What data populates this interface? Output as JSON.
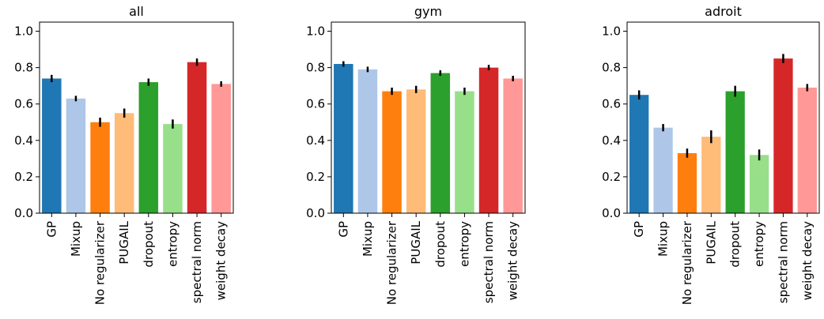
{
  "chart_data": [
    {
      "type": "bar",
      "title": "all",
      "categories": [
        "GP",
        "Mixup",
        "No regularizer",
        "PUGAIL",
        "dropout",
        "entropy",
        "spectral norm",
        "weight decay"
      ],
      "values": [
        0.74,
        0.63,
        0.5,
        0.55,
        0.72,
        0.49,
        0.83,
        0.71
      ],
      "errors": [
        0.02,
        0.015,
        0.025,
        0.025,
        0.02,
        0.025,
        0.02,
        0.015
      ],
      "ylim": [
        0.0,
        1.05
      ],
      "yticks": [
        "0.0",
        "0.2",
        "0.4",
        "0.6",
        "0.8",
        "1.0"
      ],
      "xlabel": "",
      "ylabel": "",
      "grid": false
    },
    {
      "type": "bar",
      "title": "gym",
      "categories": [
        "GP",
        "Mixup",
        "No regularizer",
        "PUGAIL",
        "dropout",
        "entropy",
        "spectral norm",
        "weight decay"
      ],
      "values": [
        0.82,
        0.79,
        0.67,
        0.68,
        0.77,
        0.67,
        0.8,
        0.74
      ],
      "errors": [
        0.015,
        0.015,
        0.02,
        0.02,
        0.015,
        0.02,
        0.015,
        0.015
      ],
      "ylim": [
        0.0,
        1.05
      ],
      "yticks": [
        "0.0",
        "0.2",
        "0.4",
        "0.6",
        "0.8",
        "1.0"
      ],
      "xlabel": "",
      "ylabel": "",
      "grid": false
    },
    {
      "type": "bar",
      "title": "adroit",
      "categories": [
        "GP",
        "Mixup",
        "No regularizer",
        "PUGAIL",
        "dropout",
        "entropy",
        "spectral norm",
        "weight decay"
      ],
      "values": [
        0.65,
        0.47,
        0.33,
        0.42,
        0.67,
        0.32,
        0.85,
        0.69
      ],
      "errors": [
        0.025,
        0.02,
        0.025,
        0.035,
        0.03,
        0.03,
        0.025,
        0.02
      ],
      "ylim": [
        0.0,
        1.05
      ],
      "yticks": [
        "0.0",
        "0.2",
        "0.4",
        "0.6",
        "0.8",
        "1.0"
      ],
      "xlabel": "",
      "ylabel": "",
      "grid": false
    }
  ],
  "colors": [
    "#1f77b4",
    "#aec7e8",
    "#ff7f0e",
    "#ffbb78",
    "#2ca02c",
    "#98df8a",
    "#d62728",
    "#ff9896"
  ],
  "errorbar_color": "#000000"
}
